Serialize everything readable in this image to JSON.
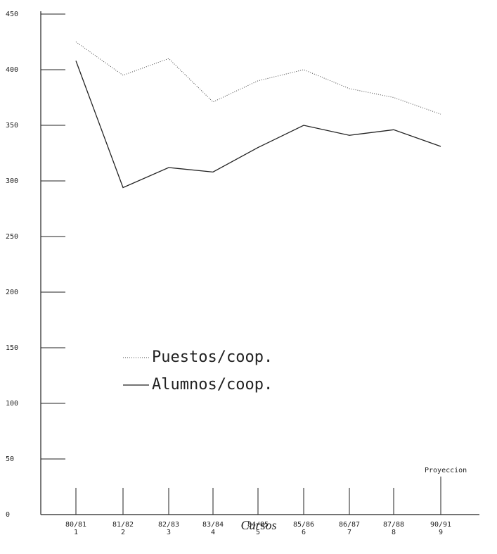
{
  "chart_data": {
    "type": "line",
    "x_label": "Cursos",
    "categories": [
      "80/81",
      "81/82",
      "82/83",
      "83/84",
      "84/85",
      "85/86",
      "86/87",
      "87/88",
      "90/91"
    ],
    "category_numbers": [
      1,
      2,
      3,
      4,
      5,
      6,
      7,
      8,
      9
    ],
    "annotation": "Proyeccion",
    "series": [
      {
        "name": "Puestos/coop.",
        "color": "#444444",
        "dash": "dotted",
        "values": [
          425,
          395,
          410,
          371,
          390,
          400,
          383,
          375,
          360
        ]
      },
      {
        "name": "Alumnos/coop.",
        "color": "#222222",
        "dash": "solid",
        "values": [
          408,
          294,
          312,
          308,
          330,
          350,
          341,
          346,
          331
        ]
      }
    ],
    "ylim": [
      0,
      450
    ],
    "yticks": [
      0,
      50,
      100,
      150,
      200,
      250,
      300,
      350,
      400,
      450
    ]
  }
}
